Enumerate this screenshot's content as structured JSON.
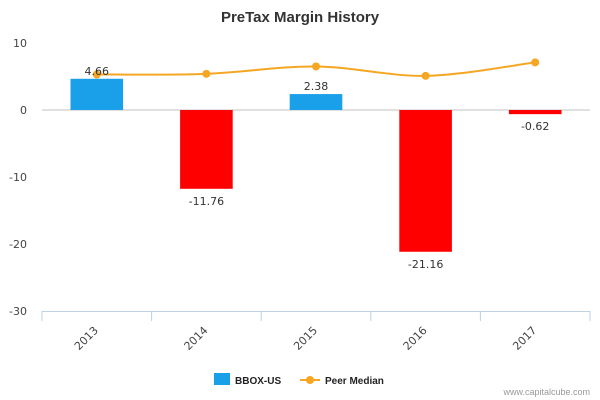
{
  "chart_data": {
    "type": "bar",
    "title": "PreTax Margin History",
    "xlabel": "",
    "ylabel": "",
    "categories": [
      "2013",
      "2014",
      "2015",
      "2016",
      "2017"
    ],
    "ylim": [
      -30,
      10
    ],
    "yticks": [
      10,
      0,
      -10,
      -20,
      -30
    ],
    "grid": false,
    "legend_position": "bottom",
    "series": [
      {
        "name": "BBOX-US",
        "type": "bar",
        "values": [
          4.66,
          -11.76,
          2.38,
          -21.16,
          -0.62
        ],
        "data_labels": [
          "4.66",
          "-11.76",
          "2.38",
          "-21.16",
          "-0.62"
        ],
        "positive_color": "#1aa0e8",
        "negative_color": "#ff0000"
      },
      {
        "name": "Peer Median",
        "type": "line",
        "values": [
          5.3,
          5.4,
          6.5,
          5.1,
          7.1
        ],
        "color": "#f5a623"
      }
    ],
    "legend": [
      "BBOX-US",
      "Peer Median"
    ],
    "credit": "www.capitalcube.com"
  },
  "colors": {
    "axis": "#c0d0e0",
    "zero_line": "#c0c0c0",
    "text": "#333333"
  }
}
